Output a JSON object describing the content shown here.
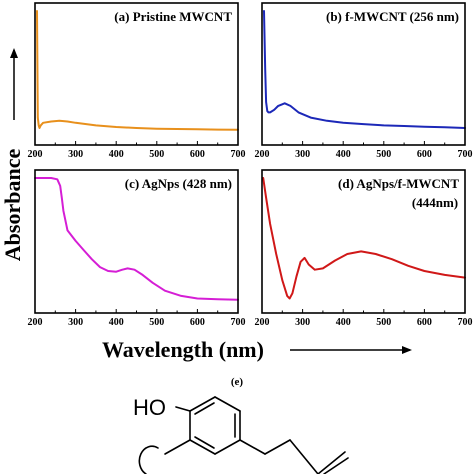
{
  "figure": {
    "ylabel": "Absorbance",
    "xlabel": "Wavelength (nm)",
    "panel_e_label": "(e)",
    "molecule_label": "HO"
  },
  "chart_data": [
    {
      "type": "line",
      "title": "(a) Pristine MWCNT",
      "color": "#e8901c",
      "xlim": [
        200,
        700
      ],
      "xticks": [
        "200",
        "300",
        "400",
        "500",
        "600",
        "700"
      ],
      "x": [
        205,
        207,
        209,
        211,
        214,
        220,
        240,
        260,
        280,
        300,
        350,
        400,
        450,
        500,
        550,
        600,
        650,
        700
      ],
      "y": [
        1.0,
        0.18,
        0.12,
        0.1,
        0.12,
        0.14,
        0.15,
        0.155,
        0.15,
        0.14,
        0.12,
        0.108,
        0.1,
        0.095,
        0.092,
        0.09,
        0.088,
        0.087
      ]
    },
    {
      "type": "line",
      "title": "(b) f-MWCNT (256 nm)",
      "color": "#1c28b8",
      "xlim": [
        200,
        700
      ],
      "xticks": [
        "200",
        "300",
        "400",
        "500",
        "600",
        "700"
      ],
      "x": [
        205,
        206,
        208,
        210,
        213,
        216,
        220,
        230,
        240,
        256,
        270,
        290,
        320,
        360,
        400,
        450,
        500,
        550,
        600,
        650,
        700
      ],
      "y": [
        1.0,
        0.85,
        0.55,
        0.3,
        0.23,
        0.22,
        0.22,
        0.24,
        0.27,
        0.29,
        0.27,
        0.22,
        0.18,
        0.155,
        0.14,
        0.13,
        0.12,
        0.115,
        0.11,
        0.105,
        0.1
      ]
    },
    {
      "type": "line",
      "title": "(c) AgNps (428 nm)",
      "color": "#d51ed5",
      "xlim": [
        200,
        700
      ],
      "xticks": [
        "200",
        "300",
        "400",
        "500",
        "600",
        "700"
      ],
      "x": [
        200,
        220,
        240,
        255,
        262,
        266,
        270,
        280,
        300,
        320,
        340,
        360,
        380,
        400,
        415,
        428,
        445,
        465,
        490,
        520,
        560,
        600,
        650,
        700
      ],
      "y": [
        1.0,
        1.0,
        1.0,
        0.99,
        0.94,
        0.85,
        0.75,
        0.6,
        0.52,
        0.45,
        0.38,
        0.32,
        0.29,
        0.285,
        0.3,
        0.31,
        0.3,
        0.26,
        0.2,
        0.14,
        0.1,
        0.08,
        0.075,
        0.07
      ]
    },
    {
      "type": "line",
      "title": "(d) AgNps/f-MWCNT",
      "subtitle": "(444nm)",
      "color": "#d01818",
      "xlim": [
        200,
        700
      ],
      "xticks": [
        "200",
        "300",
        "400",
        "500",
        "600",
        "700"
      ],
      "x": [
        203,
        210,
        220,
        235,
        250,
        262,
        268,
        275,
        285,
        295,
        305,
        315,
        330,
        350,
        380,
        410,
        444,
        480,
        520,
        560,
        600,
        650,
        700
      ],
      "y": [
        1.0,
        0.85,
        0.65,
        0.42,
        0.22,
        0.1,
        0.08,
        0.12,
        0.25,
        0.36,
        0.39,
        0.34,
        0.3,
        0.31,
        0.37,
        0.42,
        0.44,
        0.42,
        0.38,
        0.33,
        0.29,
        0.26,
        0.24
      ]
    }
  ]
}
